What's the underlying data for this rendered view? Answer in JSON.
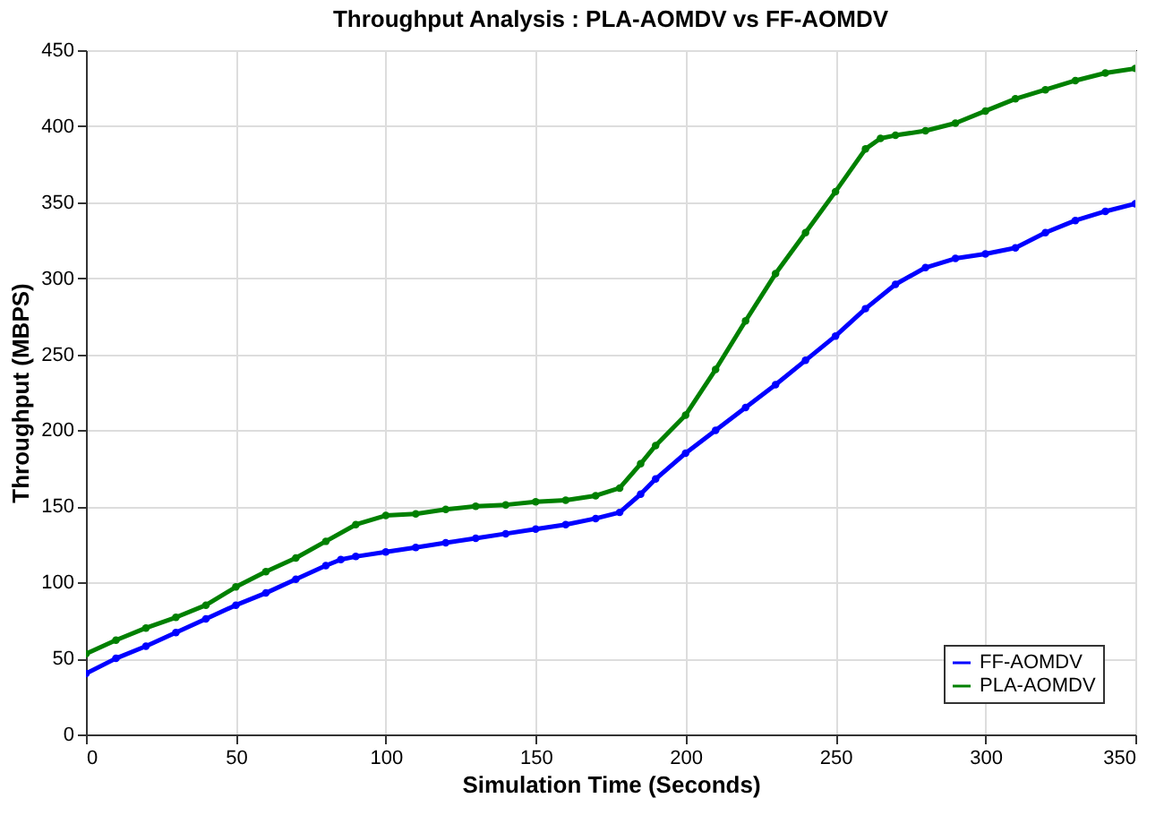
{
  "chart_data": {
    "type": "line",
    "title": "Throughput Analysis  : PLA-AOMDV  vs  FF-AOMDV",
    "xlabel": "Simulation Time (Seconds)",
    "ylabel": "Throughput (MBPS)",
    "xlim": [
      0,
      350
    ],
    "xticks": [
      0,
      50,
      100,
      150,
      200,
      250,
      300,
      350
    ],
    "ylim": [
      0,
      450
    ],
    "yticks": [
      0,
      50,
      100,
      150,
      200,
      250,
      300,
      350,
      400,
      450
    ],
    "grid": true,
    "legend": "bottom right",
    "marker": "circle",
    "line_style": "solid",
    "series": [
      {
        "name": "FF-AOMDV",
        "color": "#0000ff",
        "x": [
          0,
          10,
          20,
          30,
          40,
          50,
          60,
          70,
          80,
          85,
          90,
          100,
          110,
          120,
          130,
          140,
          150,
          160,
          170,
          178,
          185,
          190,
          200,
          210,
          220,
          230,
          240,
          250,
          260,
          270,
          280,
          290,
          300,
          310,
          320,
          330,
          340,
          350
        ],
        "values": [
          40,
          50,
          58,
          67,
          76,
          85,
          93,
          102,
          111,
          115,
          117,
          120,
          123,
          126,
          129,
          132,
          135,
          138,
          142,
          146,
          158,
          168,
          185,
          200,
          215,
          230,
          246,
          262,
          280,
          296,
          307,
          313,
          316,
          320,
          330,
          338,
          344,
          349
        ]
      },
      {
        "name": "PLA-AOMDV",
        "color": "#008000",
        "x": [
          0,
          10,
          20,
          30,
          40,
          50,
          60,
          70,
          80,
          90,
          100,
          110,
          120,
          130,
          140,
          150,
          160,
          170,
          178,
          185,
          190,
          200,
          210,
          220,
          230,
          240,
          250,
          260,
          265,
          270,
          280,
          290,
          300,
          310,
          320,
          330,
          340,
          350
        ],
        "values": [
          53,
          62,
          70,
          77,
          85,
          97,
          107,
          116,
          127,
          138,
          144,
          145,
          148,
          150,
          151,
          153,
          154,
          157,
          162,
          178,
          190,
          210,
          240,
          272,
          303,
          330,
          357,
          385,
          392,
          394,
          397,
          402,
          410,
          418,
          424,
          430,
          435,
          438
        ]
      }
    ]
  }
}
